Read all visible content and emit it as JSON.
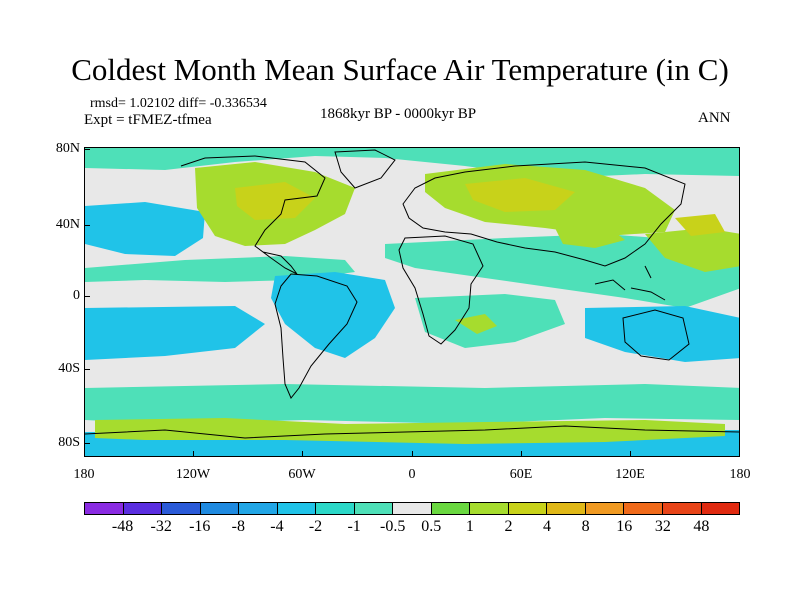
{
  "title": "Coldest Month Mean Surface Air Temperature (in C)",
  "stats": "rmsd= 1.02102  diff= -0.336534",
  "experiment": "Expt = tFMEZ-tfmea",
  "period": "1868kyr BP - 0000kyr BP",
  "season": "ANN",
  "lat_labels": [
    "80N",
    "40N",
    "0",
    "40S",
    "80S"
  ],
  "lon_labels": [
    "180",
    "120W",
    "60W",
    "0",
    "60E",
    "120E",
    "180"
  ],
  "colorbar": {
    "labels": [
      "-48",
      "-32",
      "-16",
      "-8",
      "-4",
      "-2",
      "-1",
      "-0.5",
      "0.5",
      "1",
      "2",
      "4",
      "8",
      "16",
      "32",
      "48"
    ],
    "colors": [
      "#8a2be2",
      "#5a2ee0",
      "#2a5ad8",
      "#1f8ae0",
      "#21a6e6",
      "#20c3e8",
      "#2bd8c8",
      "#4ee0b8",
      "#e8e8e8",
      "#6ad840",
      "#a6dc2e",
      "#c8d21a",
      "#e0b818",
      "#f09a22",
      "#f06a1a",
      "#e84418",
      "#e02a10"
    ]
  },
  "legend_colors": {
    "no_change": "#e8e8e8",
    "slight_warm": "#a6dc2e",
    "warm": "#c8d21a",
    "slight_cool": "#4ee0b8",
    "cool": "#20c3e8"
  }
}
